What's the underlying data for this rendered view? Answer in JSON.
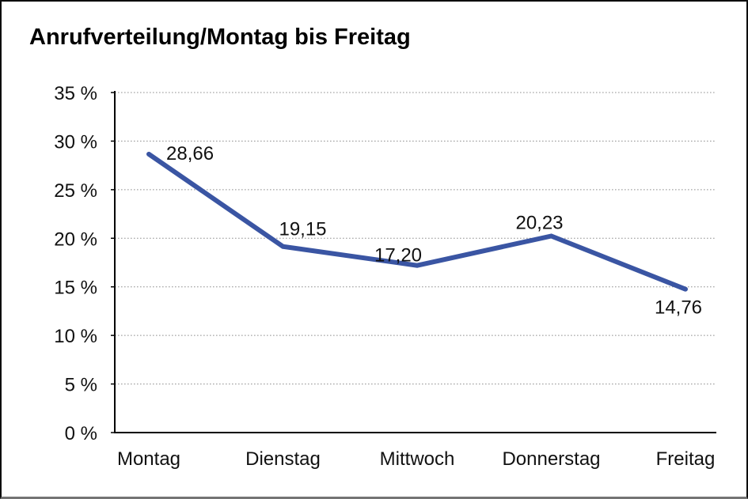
{
  "title": "Anrufverteilung/Montag bis Freitag",
  "chart_data": {
    "type": "line",
    "title": "Anrufverteilung/Montag bis Freitag",
    "categories": [
      "Montag",
      "Dienstag",
      "Mittwoch",
      "Donnerstag",
      "Freitag"
    ],
    "values": [
      28.66,
      19.15,
      17.2,
      20.23,
      14.76
    ],
    "point_labels": [
      "28,66",
      "19,15",
      "17,20",
      "20,23",
      "14,76"
    ],
    "y_tick_labels": [
      "0 %",
      "5 %",
      "10 %",
      "15 %",
      "20 %",
      "25 %",
      "30 %",
      "35 %"
    ],
    "ylim": [
      0,
      35
    ],
    "y_tick_step": 5,
    "xlabel": "",
    "ylabel": "",
    "grid": "horizontal-dotted",
    "legend": "none",
    "colors": {
      "line": "#3A55A3",
      "grid": "#8F8F8F",
      "axis": "#000000",
      "text": "#111111"
    }
  }
}
